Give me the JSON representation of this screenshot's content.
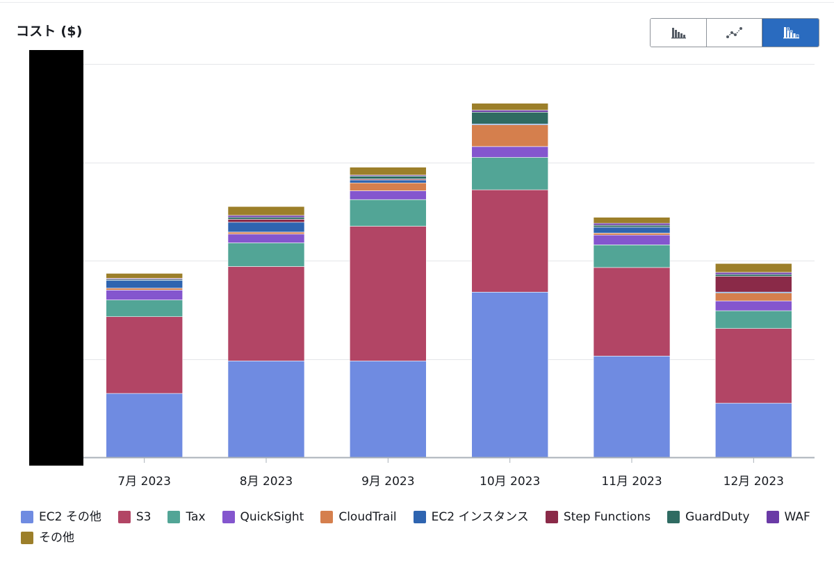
{
  "header": {
    "y_axis_title": "コスト ($)"
  },
  "view_toggles": [
    {
      "icon": "grouped-bar-icon",
      "active": false
    },
    {
      "icon": "line-chart-icon",
      "active": false
    },
    {
      "icon": "stacked-bar-icon",
      "active": true
    }
  ],
  "chart_data": {
    "type": "bar",
    "stacked": true,
    "categories": [
      "7月 2023",
      "8月 2023",
      "9月 2023",
      "10月 2023",
      "11月 2023",
      "12月 2023"
    ],
    "ylim": [
      0,
      4
    ],
    "y_tick_labels_visible": false,
    "grid": true,
    "legend_position": "bottom",
    "series": [
      {
        "name": "EC2 その他",
        "color": "#6f8be1",
        "values": [
          0.65,
          0.98,
          0.98,
          1.68,
          1.03,
          0.55
        ]
      },
      {
        "name": "S3",
        "color": "#b24565",
        "values": [
          0.78,
          0.96,
          1.37,
          1.04,
          0.9,
          0.76
        ]
      },
      {
        "name": "Tax",
        "color": "#52a596",
        "values": [
          0.17,
          0.24,
          0.27,
          0.33,
          0.23,
          0.18
        ]
      },
      {
        "name": "QuickSight",
        "color": "#8456ce",
        "values": [
          0.1,
          0.09,
          0.09,
          0.11,
          0.1,
          0.1
        ]
      },
      {
        "name": "CloudTrail",
        "color": "#d57f4d",
        "values": [
          0.02,
          0.02,
          0.08,
          0.22,
          0.02,
          0.08
        ]
      },
      {
        "name": "EC2 インスタンス",
        "color": "#2e64b0",
        "values": [
          0.08,
          0.1,
          0.03,
          0.01,
          0.06,
          0.01
        ]
      },
      {
        "name": "Step Functions",
        "color": "#8a2a48",
        "values": [
          0.0,
          0.03,
          0.01,
          0.0,
          0.0,
          0.16
        ]
      },
      {
        "name": "GuardDuty",
        "color": "#2f6b62",
        "values": [
          0.01,
          0.02,
          0.03,
          0.12,
          0.02,
          0.02
        ]
      },
      {
        "name": "WAF",
        "color": "#6a3aa6",
        "values": [
          0.01,
          0.02,
          0.01,
          0.02,
          0.02,
          0.02
        ]
      },
      {
        "name": "その他",
        "color": "#9c7f2a",
        "values": [
          0.05,
          0.09,
          0.08,
          0.07,
          0.06,
          0.09
        ]
      }
    ]
  }
}
